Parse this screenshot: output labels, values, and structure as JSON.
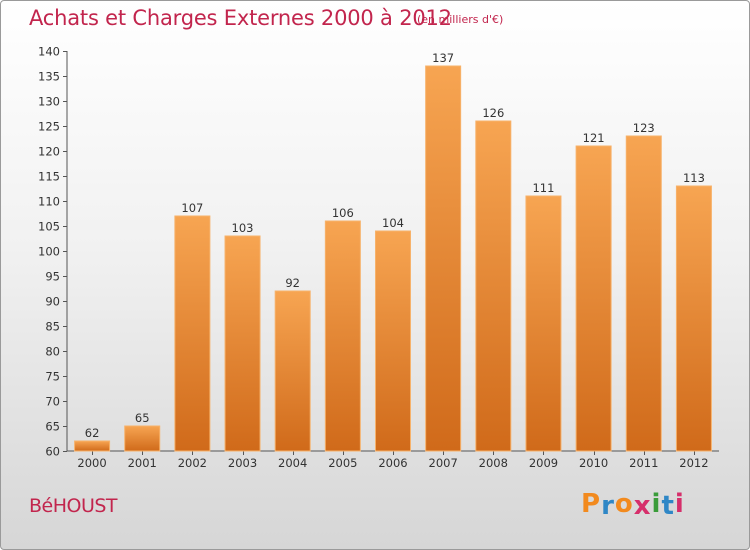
{
  "header": {
    "title": "Achats et Charges Externes 2000 à 2012",
    "subtitle": "(en milliers d'€)"
  },
  "footer": {
    "commune": "BéHOUST",
    "brand": [
      "P",
      "r",
      "o",
      "x",
      "i",
      "t",
      "i"
    ]
  },
  "colors": {
    "title": "#c2254d",
    "bar_top": "#f7a552",
    "bar_bottom": "#d06a1a",
    "brand_letters": [
      "#f28a1e",
      "#2f87c6",
      "#f28a1e",
      "#d62f6b",
      "#3a9c3a",
      "#2f87c6",
      "#d62f6b"
    ]
  },
  "chart_data": {
    "type": "bar",
    "title": "Achats et Charges Externes 2000 à 2012",
    "subtitle": "(en milliers d'€)",
    "categories": [
      "2000",
      "2001",
      "2002",
      "2003",
      "2004",
      "2005",
      "2006",
      "2007",
      "2008",
      "2009",
      "2010",
      "2011",
      "2012"
    ],
    "values": [
      62,
      65,
      107,
      103,
      92,
      106,
      104,
      137,
      126,
      111,
      121,
      123,
      113
    ],
    "data_labels": [
      "62",
      "65",
      "107",
      "103",
      "92",
      "106",
      "104",
      "137",
      "126",
      "111",
      "121",
      "123",
      "113"
    ],
    "ylim": [
      60,
      140
    ],
    "yticks": [
      60,
      65,
      70,
      75,
      80,
      85,
      90,
      95,
      100,
      105,
      110,
      115,
      120,
      125,
      130,
      135,
      140
    ],
    "xlabel": "",
    "ylabel": "",
    "grid": false,
    "legend": "none"
  }
}
